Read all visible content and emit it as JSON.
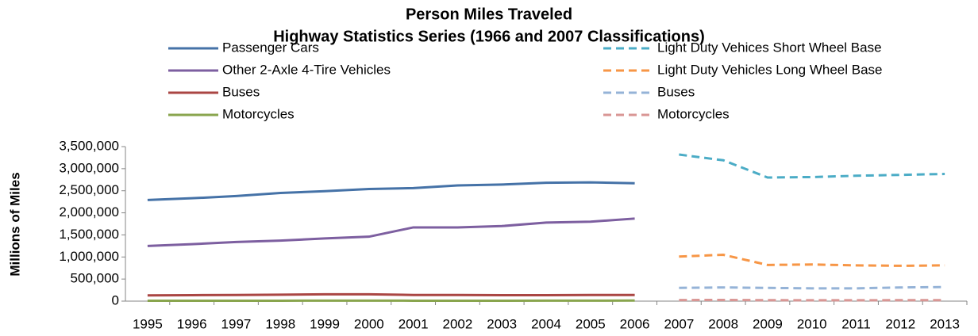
{
  "chart_data": {
    "type": "line",
    "title": "Person Miles Traveled",
    "subtitle": "Highway Statistics Series (1966 and 2007 Classifications)",
    "ylabel": "Millions of Miles",
    "categories": [
      "1995",
      "1996",
      "1997",
      "1998",
      "1999",
      "2000",
      "2001",
      "2002",
      "2003",
      "2004",
      "2005",
      "2006",
      "2007",
      "2008",
      "2009",
      "2010",
      "2011",
      "2012",
      "2013"
    ],
    "ylim": [
      0,
      3500000
    ],
    "yticks": [
      0,
      {
        "value": 500000,
        "label": "500,000"
      },
      {
        "value": 1000000,
        "label": "1,000,000"
      },
      {
        "value": 1500000,
        "label": "1,500,000"
      },
      {
        "value": 2000000,
        "label": "2,000,000"
      },
      {
        "value": 2500000,
        "label": "2,500,000"
      },
      {
        "value": 3000000,
        "label": "3,000,000"
      },
      {
        "value": 3500000,
        "label": "3,500,000"
      }
    ],
    "grid": false,
    "series": [
      {
        "name": "Passenger Cars",
        "color": "#4572a7",
        "dashed": false,
        "values": [
          2290000,
          2330000,
          2380000,
          2450000,
          2490000,
          2540000,
          2560000,
          2620000,
          2640000,
          2680000,
          2690000,
          2670000,
          null,
          null,
          null,
          null,
          null,
          null,
          null
        ]
      },
      {
        "name": "Other 2-Axle 4-Tire Vehicles",
        "color": "#7d5fa0",
        "dashed": false,
        "values": [
          1250000,
          1290000,
          1340000,
          1370000,
          1420000,
          1460000,
          1670000,
          1670000,
          1700000,
          1780000,
          1800000,
          1870000,
          null,
          null,
          null,
          null,
          null,
          null,
          null
        ]
      },
      {
        "name": "Buses",
        "color": "#aa4643",
        "dashed": false,
        "values": [
          130000,
          135000,
          140000,
          145000,
          155000,
          155000,
          140000,
          140000,
          135000,
          135000,
          140000,
          140000,
          null,
          null,
          null,
          null,
          null,
          null,
          null
        ]
      },
      {
        "name": "Motorcycles",
        "color": "#89a54e",
        "dashed": false,
        "values": [
          10000,
          10000,
          10000,
          10000,
          11000,
          11000,
          10000,
          10000,
          10000,
          11000,
          11000,
          13000,
          null,
          null,
          null,
          null,
          null,
          null,
          null
        ]
      },
      {
        "name": "Light Duty Vehices Short Wheel Base",
        "color": "#4bacc6",
        "dashed": true,
        "values": [
          null,
          null,
          null,
          null,
          null,
          null,
          null,
          null,
          null,
          null,
          null,
          null,
          3320000,
          3190000,
          2800000,
          2810000,
          2840000,
          2860000,
          2880000
        ]
      },
      {
        "name": "Light Duty Vehicles Long Wheel Base",
        "color": "#f79646",
        "dashed": true,
        "values": [
          null,
          null,
          null,
          null,
          null,
          null,
          null,
          null,
          null,
          null,
          null,
          null,
          1010000,
          1050000,
          820000,
          830000,
          810000,
          800000,
          810000
        ]
      },
      {
        "name": "Buses",
        "color": "#95b3d7",
        "dashed": true,
        "values": [
          null,
          null,
          null,
          null,
          null,
          null,
          null,
          null,
          null,
          null,
          null,
          null,
          300000,
          310000,
          300000,
          290000,
          290000,
          310000,
          320000
        ]
      },
      {
        "name": "Motorcycles",
        "color": "#d99694",
        "dashed": true,
        "values": [
          null,
          null,
          null,
          null,
          null,
          null,
          null,
          null,
          null,
          null,
          null,
          null,
          25000,
          27000,
          22000,
          20000,
          20000,
          22000,
          22000
        ]
      }
    ]
  }
}
